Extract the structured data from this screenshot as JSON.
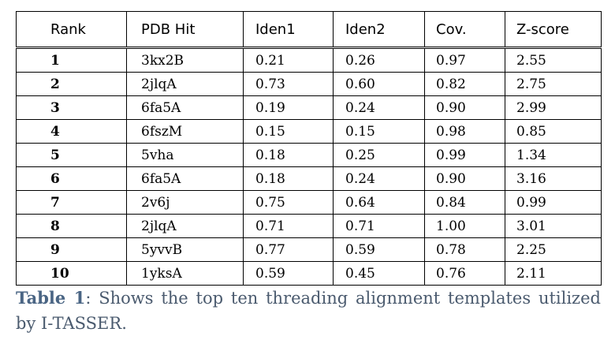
{
  "table": {
    "headers": [
      "Rank",
      "PDB Hit",
      "Iden1",
      "Iden2",
      "Cov.",
      "Z-score"
    ],
    "rows": [
      [
        "1",
        "3kx2B",
        "0.21",
        "0.26",
        "0.97",
        "2.55"
      ],
      [
        "2",
        "2jlqA",
        "0.73",
        "0.60",
        "0.82",
        "2.75"
      ],
      [
        "3",
        "6fa5A",
        "0.19",
        "0.24",
        "0.90",
        "2.99"
      ],
      [
        "4",
        "6fszM",
        "0.15",
        "0.15",
        "0.98",
        "0.85"
      ],
      [
        "5",
        "5vha",
        "0.18",
        "0.25",
        "0.99",
        "1.34"
      ],
      [
        "6",
        "6fa5A",
        "0.18",
        "0.24",
        "0.90",
        "3.16"
      ],
      [
        "7",
        "2v6j",
        "0.75",
        "0.64",
        "0.84",
        "0.99"
      ],
      [
        "8",
        "2jlqA",
        "0.71",
        "0.71",
        "1.00",
        "3.01"
      ],
      [
        "9",
        "5yvvB",
        "0.77",
        "0.59",
        "0.78",
        "2.25"
      ],
      [
        "10",
        "1yksA",
        "0.59",
        "0.45",
        "0.76",
        "2.11"
      ]
    ]
  },
  "caption": {
    "label": "Table 1",
    "text": ": Shows the top ten threading alignment templates utilized by I-TASSER."
  }
}
